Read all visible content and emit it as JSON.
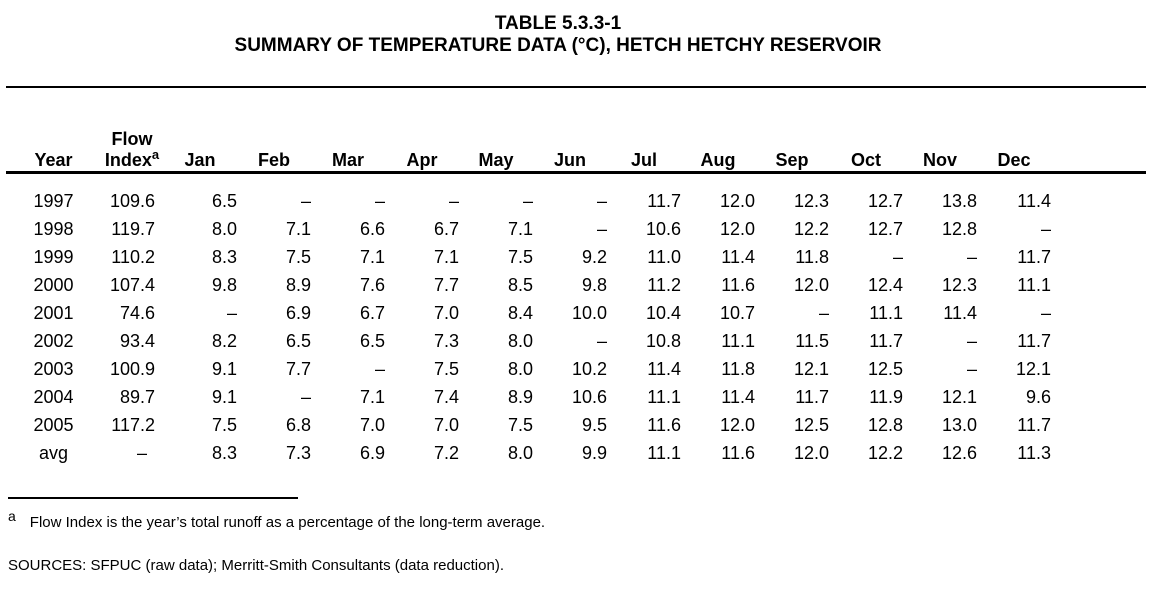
{
  "page": {
    "title_line1": "TABLE 5.3.3-1",
    "title_line2": "SUMMARY OF TEMPERATURE DATA (°C), HETCH HETCHY RESERVOIR"
  },
  "table": {
    "headers": {
      "year": "Year",
      "flow_line1": "Flow",
      "flow_line2": "Index",
      "flow_footnote_marker": "a",
      "months": [
        "Jan",
        "Feb",
        "Mar",
        "Apr",
        "May",
        "Jun",
        "Jul",
        "Aug",
        "Sep",
        "Oct",
        "Nov",
        "Dec"
      ]
    },
    "missing_value_symbol": "–",
    "rows": [
      {
        "year": "1997",
        "flow_index": "109.6",
        "values": [
          "6.5",
          "–",
          "–",
          "–",
          "–",
          "–",
          "11.7",
          "12.0",
          "12.3",
          "12.7",
          "13.8",
          "11.4"
        ]
      },
      {
        "year": "1998",
        "flow_index": "119.7",
        "values": [
          "8.0",
          "7.1",
          "6.6",
          "6.7",
          "7.1",
          "–",
          "10.6",
          "12.0",
          "12.2",
          "12.7",
          "12.8",
          "–"
        ]
      },
      {
        "year": "1999",
        "flow_index": "110.2",
        "values": [
          "8.3",
          "7.5",
          "7.1",
          "7.1",
          "7.5",
          "9.2",
          "11.0",
          "11.4",
          "11.8",
          "–",
          "–",
          "11.7"
        ]
      },
      {
        "year": "2000",
        "flow_index": "107.4",
        "values": [
          "9.8",
          "8.9",
          "7.6",
          "7.7",
          "8.5",
          "9.8",
          "11.2",
          "11.6",
          "12.0",
          "12.4",
          "12.3",
          "11.1"
        ]
      },
      {
        "year": "2001",
        "flow_index": "74.6",
        "values": [
          "–",
          "6.9",
          "6.7",
          "7.0",
          "8.4",
          "10.0",
          "10.4",
          "10.7",
          "–",
          "11.1",
          "11.4",
          "–"
        ]
      },
      {
        "year": "2002",
        "flow_index": "93.4",
        "values": [
          "8.2",
          "6.5",
          "6.5",
          "7.3",
          "8.0",
          "–",
          "10.8",
          "11.1",
          "11.5",
          "11.7",
          "–",
          "11.7"
        ]
      },
      {
        "year": "2003",
        "flow_index": "100.9",
        "values": [
          "9.1",
          "7.7",
          "–",
          "7.5",
          "8.0",
          "10.2",
          "11.4",
          "11.8",
          "12.1",
          "12.5",
          "–",
          "12.1"
        ]
      },
      {
        "year": "2004",
        "flow_index": "89.7",
        "values": [
          "9.1",
          "–",
          "7.1",
          "7.4",
          "8.9",
          "10.6",
          "11.1",
          "11.4",
          "11.7",
          "11.9",
          "12.1",
          "9.6"
        ]
      },
      {
        "year": "2005",
        "flow_index": "117.2",
        "values": [
          "7.5",
          "6.8",
          "7.0",
          "7.0",
          "7.5",
          "9.5",
          "11.6",
          "12.0",
          "12.5",
          "12.8",
          "13.0",
          "11.7"
        ]
      },
      {
        "year": "avg",
        "flow_index": "–",
        "values": [
          "8.3",
          "7.3",
          "6.9",
          "7.2",
          "8.0",
          "9.9",
          "11.1",
          "11.6",
          "12.0",
          "12.2",
          "12.6",
          "11.3"
        ]
      }
    ]
  },
  "footnote": {
    "marker": "a",
    "text": "Flow Index is the year’s total runoff as a percentage of the long-term average."
  },
  "sources_line": "SOURCES: SFPUC (raw data); Merritt-Smith Consultants (data reduction)."
}
